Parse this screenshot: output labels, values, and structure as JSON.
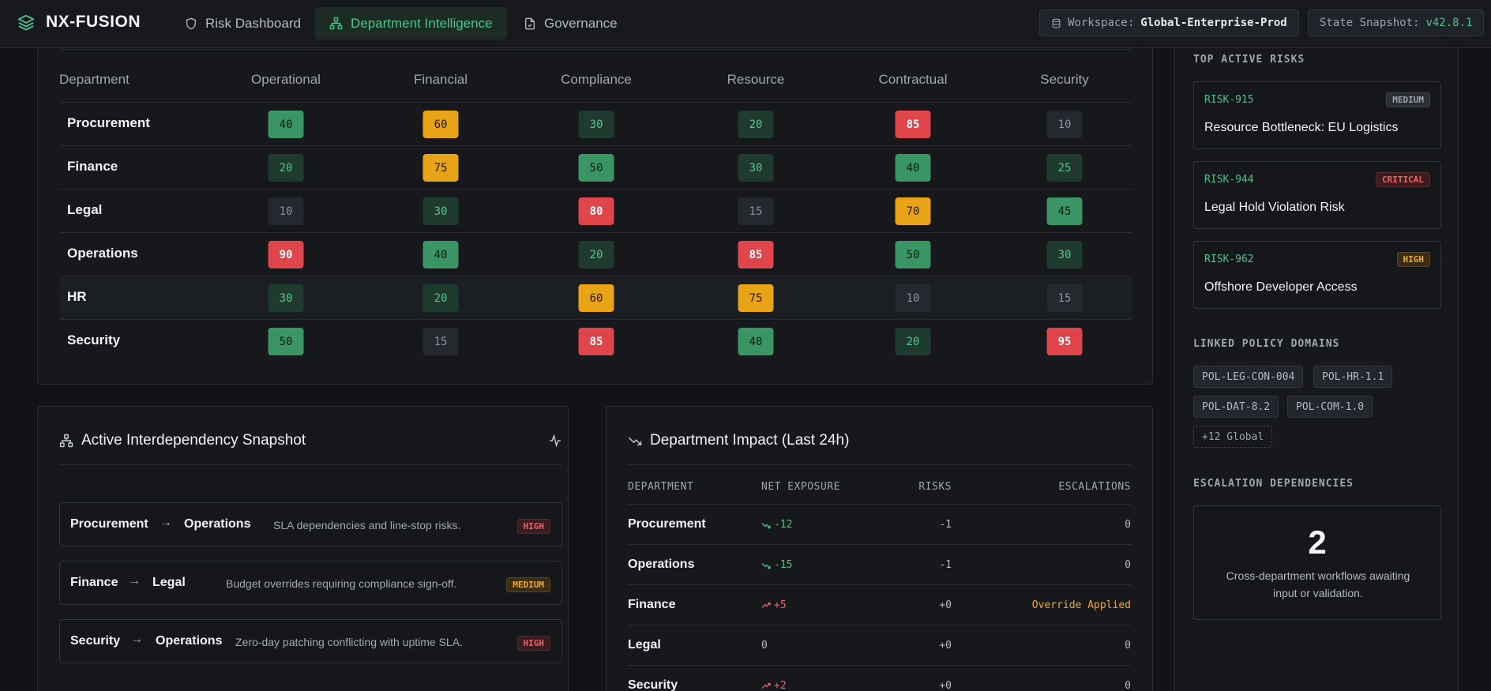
{
  "brand": {
    "name": "NX-FUSION"
  },
  "nav": {
    "tabs": [
      {
        "label": "Risk Dashboard",
        "icon": "shield-icon"
      },
      {
        "label": "Department Intelligence",
        "icon": "network-icon",
        "active": true
      },
      {
        "label": "Governance",
        "icon": "document-check-icon"
      }
    ]
  },
  "workspace": {
    "label": "Workspace:",
    "value": "Global-Enterprise-Prod"
  },
  "snapshot": {
    "label": "State Snapshot:",
    "value": "v42.8.1"
  },
  "heatmap": {
    "columns": [
      "Department",
      "Operational",
      "Financial",
      "Compliance",
      "Resource",
      "Contractual",
      "Security"
    ],
    "rows": [
      {
        "name": "Procurement",
        "values": [
          40,
          60,
          30,
          20,
          85,
          10
        ],
        "levels": [
          "gr",
          "am",
          "dk",
          "dk",
          "rd",
          "ng"
        ]
      },
      {
        "name": "Finance",
        "values": [
          20,
          75,
          50,
          30,
          40,
          25
        ],
        "levels": [
          "dk",
          "am",
          "gr",
          "dk",
          "gr",
          "dk"
        ]
      },
      {
        "name": "Legal",
        "values": [
          10,
          30,
          80,
          15,
          70,
          45
        ],
        "levels": [
          "ng",
          "dk",
          "rd",
          "ng",
          "am",
          "gr"
        ]
      },
      {
        "name": "Operations",
        "values": [
          90,
          40,
          20,
          85,
          50,
          30
        ],
        "levels": [
          "rd",
          "gr",
          "dk",
          "rd",
          "gr",
          "dk"
        ]
      },
      {
        "name": "HR",
        "values": [
          30,
          20,
          60,
          75,
          10,
          15
        ],
        "levels": [
          "dk",
          "dk",
          "am",
          "am",
          "ng",
          "ng"
        ]
      },
      {
        "name": "Security",
        "values": [
          50,
          15,
          85,
          40,
          20,
          95
        ],
        "levels": [
          "gr",
          "ng",
          "rd",
          "gr",
          "dk",
          "rd"
        ]
      }
    ]
  },
  "interdependency": {
    "title": "Active Interdependency Snapshot",
    "items": [
      {
        "from": "Procurement",
        "to": "Operations",
        "arrow": "→",
        "desc": "SLA dependencies and line-stop risks.",
        "severity": "HIGH"
      },
      {
        "from": "Finance",
        "to": "Legal",
        "arrow": "→",
        "desc": "Budget overrides requiring compliance sign-off.",
        "severity": "MEDIUM"
      },
      {
        "from": "Security",
        "to": "Operations",
        "arrow": "→",
        "desc": "Zero-day patching conflicting with uptime SLA.",
        "severity": "HIGH"
      }
    ]
  },
  "impact": {
    "title": "Department Impact (Last 24h)",
    "headers": {
      "department": "DEPARTMENT",
      "net": "NET EXPOSURE",
      "risks": "RISKS",
      "escalations": "ESCALATIONS"
    },
    "rows": [
      {
        "department": "Procurement",
        "net": "-12",
        "trend": "down",
        "risks": "-1",
        "escalations": "0"
      },
      {
        "department": "Operations",
        "net": "-15",
        "trend": "down",
        "risks": "-1",
        "escalations": "0"
      },
      {
        "department": "Finance",
        "net": "+5",
        "trend": "up",
        "risks": "+0",
        "escalations": "Override Applied"
      },
      {
        "department": "Legal",
        "net": "0",
        "trend": "flat",
        "risks": "+0",
        "escalations": "0"
      },
      {
        "department": "Security",
        "net": "+2",
        "trend": "up",
        "risks": "+0",
        "escalations": "0"
      }
    ]
  },
  "sidebar": {
    "top_risks_title": "TOP ACTIVE RISKS",
    "risks": [
      {
        "id": "RISK-915",
        "title": "Resource Bottleneck: EU Logistics",
        "severity": "MEDIUM"
      },
      {
        "id": "RISK-944",
        "title": "Legal Hold Violation Risk",
        "severity": "CRITICAL"
      },
      {
        "id": "RISK-962",
        "title": "Offshore Developer Access",
        "severity": "HIGH"
      }
    ],
    "policy_title": "LINKED POLICY DOMAINS",
    "policies": [
      "POL-LEG-CON-004",
      "POL-HR-1.1",
      "POL-DAT-8.2",
      "POL-COM-1.0"
    ],
    "policies_more": "+12 Global",
    "escalation_title": "ESCALATION DEPENDENCIES",
    "escalation_count": "2",
    "escalation_desc": "Cross-department workflows awaiting input or validation."
  },
  "colors": {
    "accent": "#4cc38a",
    "critical": "#e0454b",
    "warning": "#e8a317",
    "background": "#111316"
  }
}
